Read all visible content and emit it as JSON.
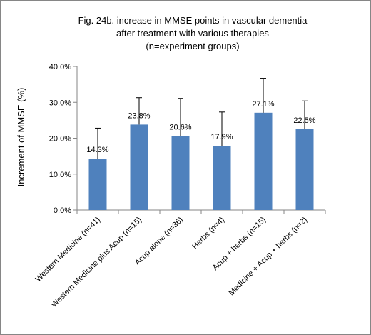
{
  "chart_data": {
    "type": "bar",
    "title_lines": [
      "Fig. 24b.  increase in MMSE points in vascular dementia",
      "after treatment with various therapies",
      "(n=experiment groups)"
    ],
    "xlabel": "",
    "ylabel": "Increment of MMSE (%)",
    "ylim": [
      0,
      0.4
    ],
    "yticks": [
      0,
      0.1,
      0.2,
      0.3,
      0.4
    ],
    "ytick_labels": [
      "0.0%",
      "10.0%",
      "20.0%",
      "30.0%",
      "40.0%"
    ],
    "categories": [
      "Western Medicine (n=41)",
      "Western Medicine plus Acup (n=15)",
      "Acup alone (n=36)",
      "Herbs (n=4)",
      "Acup + herbs (n=15)",
      "Medicine + Acup + herbs (n=2)"
    ],
    "values": [
      0.143,
      0.238,
      0.206,
      0.179,
      0.271,
      0.225
    ],
    "data_labels": [
      "14.3%",
      "23.8%",
      "20.6%",
      "17.9%",
      "27.1%",
      "22.5%"
    ],
    "error_upper": [
      0.228,
      0.313,
      0.311,
      0.273,
      0.367,
      0.304
    ],
    "grid": false,
    "legend": "none",
    "bar_color": "#4f81bd"
  }
}
